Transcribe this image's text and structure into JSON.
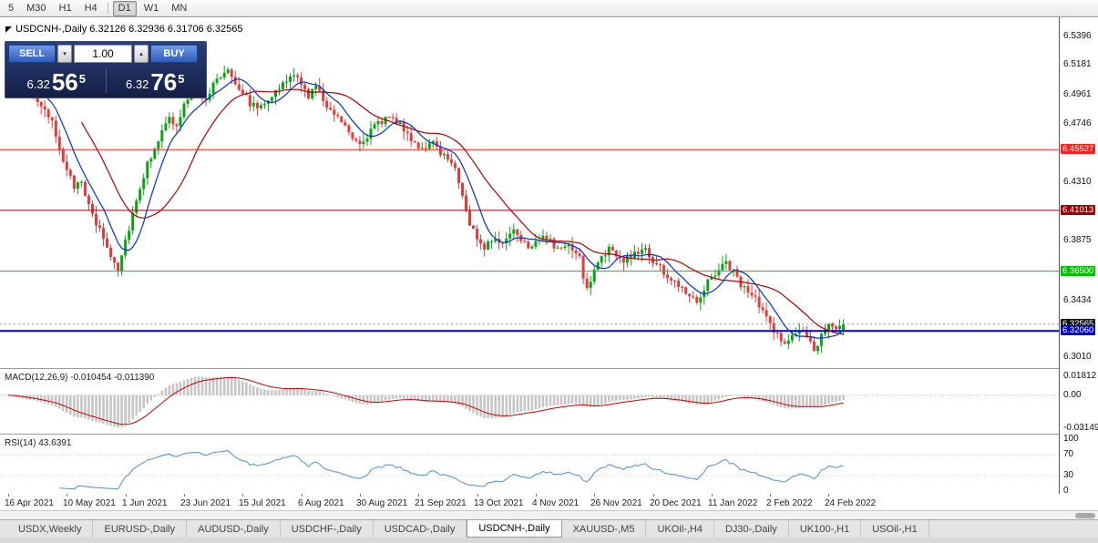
{
  "toolbar": {
    "timeframes": [
      {
        "label": "5",
        "active": false
      },
      {
        "label": "M30",
        "active": false
      },
      {
        "label": "H1",
        "active": false
      },
      {
        "label": "H4",
        "active": false
      },
      {
        "label": "D1",
        "active": true
      },
      {
        "label": "W1",
        "active": false
      },
      {
        "label": "MN",
        "active": false
      }
    ]
  },
  "window": {
    "chart_title": "USDCNH-,Daily 6.32126 6.32936 6.31706 6.32565"
  },
  "trade_panel": {
    "sell_label": "SELL",
    "buy_label": "BUY",
    "volume": "1.00",
    "bid": {
      "prefix": "6.32",
      "main": "56",
      "sup": "5"
    },
    "ask": {
      "prefix": "6.32",
      "main": "76",
      "sup": "5"
    }
  },
  "price_axis": {
    "ticks": [
      {
        "label": "6.5396",
        "value": 6.5396
      },
      {
        "label": "6.5181",
        "value": 6.5181
      },
      {
        "label": "6.4961",
        "value": 6.4961
      },
      {
        "label": "6.4746",
        "value": 6.4746
      },
      {
        "label": "6.4310",
        "value": 6.431
      },
      {
        "label": "6.3875",
        "value": 6.3875
      },
      {
        "label": "6.3434",
        "value": 6.3434
      },
      {
        "label": "6.3010",
        "value": 6.301
      }
    ],
    "badges": [
      {
        "label": "6.45527",
        "value": 6.45527,
        "bg": "#ff2020"
      },
      {
        "label": "6.41013",
        "value": 6.41013,
        "bg": "#990000"
      },
      {
        "label": "6.36500",
        "value": 6.365,
        "bg": "#00c300"
      },
      {
        "label": "6.32565",
        "value": 6.32565,
        "bg": "#111111"
      },
      {
        "label": "6.32060",
        "value": 6.3206,
        "bg": "#0000cc"
      }
    ]
  },
  "indicators": {
    "macd": {
      "label": "MACD(12,26,9) -0.010454 -0.011390",
      "values": [
        -0.010454,
        -0.01139
      ],
      "axis_labels": [
        {
          "label": "0.01812",
          "value": 0.01812
        },
        {
          "label": "0.00",
          "value": 0.0
        },
        {
          "label": "-0.03149",
          "value": -0.03149
        }
      ]
    },
    "rsi": {
      "label": "RSI(14) 43.6391",
      "value": 43.6391,
      "axis_labels": [
        {
          "label": "100",
          "value": 100
        },
        {
          "label": "70",
          "value": 70
        },
        {
          "label": "30",
          "value": 30
        },
        {
          "label": "0",
          "value": 0
        }
      ]
    }
  },
  "xaxis": {
    "dates": [
      {
        "label": "16 Apr 2021",
        "day": 0
      },
      {
        "label": "10 May 2021",
        "day": 16
      },
      {
        "label": "1 Jun 2021",
        "day": 32
      },
      {
        "label": "23 Jun 2021",
        "day": 48
      },
      {
        "label": "15 Jul 2021",
        "day": 64
      },
      {
        "label": "6 Aug 2021",
        "day": 80
      },
      {
        "label": "30 Aug 2021",
        "day": 96
      },
      {
        "label": "21 Sep 2021",
        "day": 112
      },
      {
        "label": "13 Oct 2021",
        "day": 128
      },
      {
        "label": "4 Nov 2021",
        "day": 144
      },
      {
        "label": "26 Nov 2021",
        "day": 160
      },
      {
        "label": "20 Dec 2021",
        "day": 176
      },
      {
        "label": "11 Jan 2022",
        "day": 192
      },
      {
        "label": "2 Feb 2022",
        "day": 208
      },
      {
        "label": "24 Feb 2022",
        "day": 224
      }
    ]
  },
  "tabs": [
    {
      "label": "USDX,Weekly",
      "active": false
    },
    {
      "label": "EURUSD-,Daily",
      "active": false
    },
    {
      "label": "AUDUSD-,Daily",
      "active": false
    },
    {
      "label": "USDCHF-,Daily",
      "active": false
    },
    {
      "label": "USDCAD-,Daily",
      "active": false
    },
    {
      "label": "USDCNH-,Daily",
      "active": true
    },
    {
      "label": "XAUUSD-,M5",
      "active": false
    },
    {
      "label": "UKOil-,H4",
      "active": false
    },
    {
      "label": "DJ30-,Daily",
      "active": false
    },
    {
      "label": "UK100-,H1",
      "active": false
    },
    {
      "label": "USOil-,H1",
      "active": false
    }
  ],
  "colors": {
    "candle_up": "#0ca117",
    "candle_down": "#e03c3c",
    "ma_fast": "#0033cc",
    "ma_slow": "#b00000",
    "macd_hist": "#c6c6c6",
    "macd_signal": "#cc0000",
    "rsi_line": "#4f8fce",
    "bid_line": "#9a9a9a"
  },
  "chart_data": {
    "type": "candlestick",
    "symbol": "USDCNH-",
    "timeframe": "Daily",
    "title": "USDCNH-,Daily",
    "last_ohlc": {
      "open": 6.32126,
      "high": 6.32936,
      "low": 6.31706,
      "close": 6.32565
    },
    "bid": 6.32565,
    "ask": 6.32765,
    "y_range": [
      6.293,
      6.5535
    ],
    "num_candles": 229,
    "close_path_anchors": [
      [
        0,
        6.516
      ],
      [
        2,
        6.508
      ],
      [
        4,
        6.498
      ],
      [
        6,
        6.503
      ],
      [
        8,
        6.492
      ],
      [
        10,
        6.482
      ],
      [
        12,
        6.474
      ],
      [
        14,
        6.458
      ],
      [
        16,
        6.438
      ],
      [
        18,
        6.428
      ],
      [
        20,
        6.434
      ],
      [
        22,
        6.412
      ],
      [
        24,
        6.4
      ],
      [
        26,
        6.39
      ],
      [
        28,
        6.376
      ],
      [
        30,
        6.368
      ],
      [
        32,
        6.388
      ],
      [
        34,
        6.408
      ],
      [
        36,
        6.428
      ],
      [
        38,
        6.444
      ],
      [
        40,
        6.458
      ],
      [
        42,
        6.468
      ],
      [
        44,
        6.478
      ],
      [
        46,
        6.472
      ],
      [
        48,
        6.488
      ],
      [
        50,
        6.494
      ],
      [
        52,
        6.5
      ],
      [
        54,
        6.49
      ],
      [
        56,
        6.504
      ],
      [
        58,
        6.51
      ],
      [
        60,
        6.516
      ],
      [
        62,
        6.506
      ],
      [
        64,
        6.498
      ],
      [
        66,
        6.49
      ],
      [
        68,
        6.486
      ],
      [
        70,
        6.492
      ],
      [
        72,
        6.496
      ],
      [
        74,
        6.5
      ],
      [
        76,
        6.506
      ],
      [
        78,
        6.512
      ],
      [
        80,
        6.502
      ],
      [
        82,
        6.496
      ],
      [
        84,
        6.502
      ],
      [
        86,
        6.492
      ],
      [
        88,
        6.486
      ],
      [
        90,
        6.48
      ],
      [
        92,
        6.474
      ],
      [
        94,
        6.466
      ],
      [
        96,
        6.46
      ],
      [
        98,
        6.466
      ],
      [
        100,
        6.472
      ],
      [
        102,
        6.476
      ],
      [
        104,
        6.482
      ],
      [
        106,
        6.476
      ],
      [
        108,
        6.47
      ],
      [
        110,
        6.464
      ],
      [
        112,
        6.458
      ],
      [
        114,
        6.454
      ],
      [
        116,
        6.46
      ],
      [
        118,
        6.454
      ],
      [
        120,
        6.448
      ],
      [
        122,
        6.444
      ],
      [
        124,
        6.42
      ],
      [
        126,
        6.4
      ],
      [
        128,
        6.39
      ],
      [
        130,
        6.384
      ],
      [
        132,
        6.39
      ],
      [
        134,
        6.384
      ],
      [
        136,
        6.39
      ],
      [
        138,
        6.396
      ],
      [
        140,
        6.39
      ],
      [
        142,
        6.384
      ],
      [
        144,
        6.388
      ],
      [
        146,
        6.392
      ],
      [
        148,
        6.386
      ],
      [
        150,
        6.38
      ],
      [
        152,
        6.386
      ],
      [
        154,
        6.38
      ],
      [
        156,
        6.374
      ],
      [
        158,
        6.35
      ],
      [
        160,
        6.366
      ],
      [
        162,
        6.376
      ],
      [
        164,
        6.382
      ],
      [
        166,
        6.376
      ],
      [
        168,
        6.372
      ],
      [
        170,
        6.376
      ],
      [
        172,
        6.38
      ],
      [
        174,
        6.382
      ],
      [
        176,
        6.372
      ],
      [
        178,
        6.368
      ],
      [
        180,
        6.36
      ],
      [
        182,
        6.356
      ],
      [
        184,
        6.354
      ],
      [
        186,
        6.348
      ],
      [
        188,
        6.344
      ],
      [
        190,
        6.352
      ],
      [
        192,
        6.362
      ],
      [
        194,
        6.366
      ],
      [
        196,
        6.372
      ],
      [
        198,
        6.364
      ],
      [
        200,
        6.356
      ],
      [
        202,
        6.348
      ],
      [
        204,
        6.344
      ],
      [
        206,
        6.334
      ],
      [
        208,
        6.326
      ],
      [
        210,
        6.318
      ],
      [
        212,
        6.31
      ],
      [
        214,
        6.316
      ],
      [
        216,
        6.322
      ],
      [
        218,
        6.314
      ],
      [
        220,
        6.306
      ],
      [
        222,
        6.318
      ],
      [
        224,
        6.328
      ],
      [
        226,
        6.32
      ],
      [
        228,
        6.3256
      ]
    ],
    "horizontal_levels": [
      {
        "price": 6.45527,
        "color": "#ff2020",
        "width": 1
      },
      {
        "price": 6.41013,
        "color": "#990000",
        "width": 1
      },
      {
        "price": 6.365,
        "color": "#00cc00",
        "width": 1
      },
      {
        "price": 6.3206,
        "color": "#0000cc",
        "width": 2
      }
    ],
    "moving_averages": [
      {
        "period": 8,
        "color": "#0033cc"
      },
      {
        "period": 21,
        "color": "#b00000"
      }
    ],
    "indicator_panes": [
      {
        "name": "MACD",
        "params": [
          12,
          26,
          9
        ],
        "current_values": [
          -0.010454,
          -0.01139
        ],
        "axis_range": [
          -0.03149,
          0.01812
        ]
      },
      {
        "name": "RSI",
        "params": [
          14
        ],
        "current_value": 43.6391,
        "axis_range": [
          0,
          100
        ],
        "levels": [
          30,
          70
        ]
      }
    ]
  }
}
